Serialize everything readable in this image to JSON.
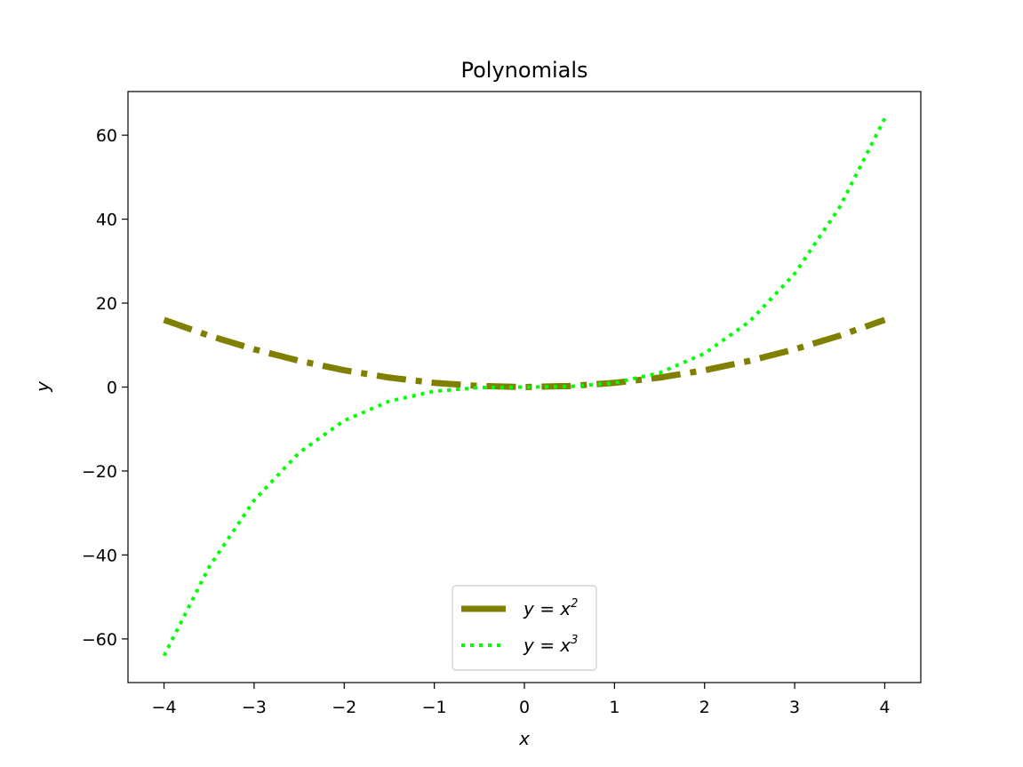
{
  "chart_data": {
    "type": "line",
    "title": "Polynomials",
    "xlabel": "x",
    "ylabel": "y",
    "xlim": [
      -4.4,
      4.4
    ],
    "ylim": [
      -70.4,
      70.4
    ],
    "xticks": [
      -4,
      -3,
      -2,
      -1,
      0,
      1,
      2,
      3,
      4
    ],
    "yticks": [
      -60,
      -40,
      -20,
      0,
      20,
      40,
      60
    ],
    "xtick_labels": [
      "−4",
      "−3",
      "−2",
      "−1",
      "0",
      "1",
      "2",
      "3",
      "4"
    ],
    "ytick_labels": [
      "−60",
      "−40",
      "−20",
      "0",
      "20",
      "40",
      "60"
    ],
    "grid": false,
    "legend_position": "lower-center",
    "series": [
      {
        "name": "y = x2",
        "legend_base": "y = x",
        "legend_exp": "2",
        "color": "#808000",
        "linestyle": "dash-dot",
        "x": [
          -4,
          -3.5,
          -3,
          -2.5,
          -2,
          -1.5,
          -1,
          -0.5,
          0,
          0.5,
          1,
          1.5,
          2,
          2.5,
          3,
          3.5,
          4
        ],
        "y": [
          16,
          12.25,
          9,
          6.25,
          4,
          2.25,
          1,
          0.25,
          0,
          0.25,
          1,
          2.25,
          4,
          6.25,
          9,
          12.25,
          16
        ]
      },
      {
        "name": "y = x3",
        "legend_base": "y = x",
        "legend_exp": "3",
        "color": "#00ff00",
        "linestyle": "dotted",
        "x": [
          -4,
          -3.5,
          -3,
          -2.5,
          -2,
          -1.5,
          -1,
          -0.5,
          0,
          0.5,
          1,
          1.5,
          2,
          2.5,
          3,
          3.5,
          4
        ],
        "y": [
          -64,
          -42.875,
          -27,
          -15.625,
          -8,
          -3.375,
          -1,
          -0.125,
          0,
          0.125,
          1,
          3.375,
          8,
          15.625,
          27,
          42.875,
          64
        ]
      }
    ]
  }
}
